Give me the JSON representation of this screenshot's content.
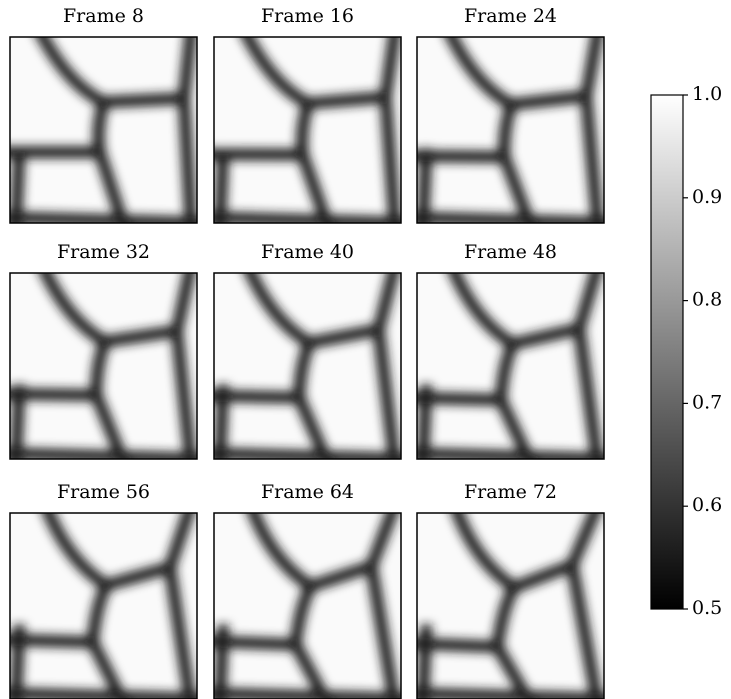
{
  "chart_data": {
    "type": "image-grid",
    "panels": [
      {
        "title": "Frame 8"
      },
      {
        "title": "Frame 16"
      },
      {
        "title": "Frame 24"
      },
      {
        "title": "Frame 32"
      },
      {
        "title": "Frame 40"
      },
      {
        "title": "Frame 48"
      },
      {
        "title": "Frame 56"
      },
      {
        "title": "Frame 64"
      },
      {
        "title": "Frame 72"
      }
    ],
    "colormap": "gray",
    "clim": [
      0.5,
      1.0
    ],
    "cticks": [
      0.5,
      0.6,
      0.7,
      0.8,
      0.9,
      {
        "value": 1.0,
        "label": "1.0"
      }
    ]
  }
}
